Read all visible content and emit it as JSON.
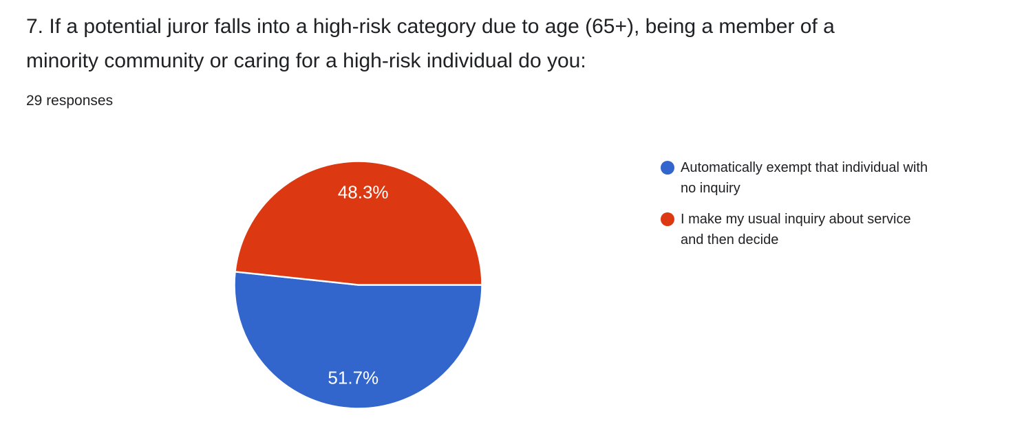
{
  "header": {
    "title": "7. If a potential juror falls into a high-risk category due to age (65+), being a member of a\nminority community or caring for a high-risk individual do you:",
    "responses_count": "29 responses"
  },
  "legend": {
    "items": [
      {
        "label": "Automatically exempt that individual with\nno inquiry"
      },
      {
        "label": "I make my usual inquiry about service\nand then decide"
      }
    ]
  },
  "chart_data": {
    "type": "pie",
    "title": "7. If a potential juror falls into a high-risk category due to age (65+), being a member of a minority community or caring for a high-risk individual do you:",
    "subtitle": "29 responses",
    "total_responses": 29,
    "labels": [
      "Automatically exempt that individual with no inquiry",
      "I make my usual inquiry about service and then decide"
    ],
    "values_percent": [
      51.7,
      48.3
    ],
    "slice_labels": [
      "51.7%",
      "48.3%"
    ],
    "colors": [
      "#3366CC",
      "#DC3912"
    ],
    "slice_text_color": "#ffffff",
    "slice_border_color": "#ffffff",
    "start_angle_deg": 0,
    "direction": "clockwise",
    "legend_position": "right",
    "background": "#ffffff"
  }
}
